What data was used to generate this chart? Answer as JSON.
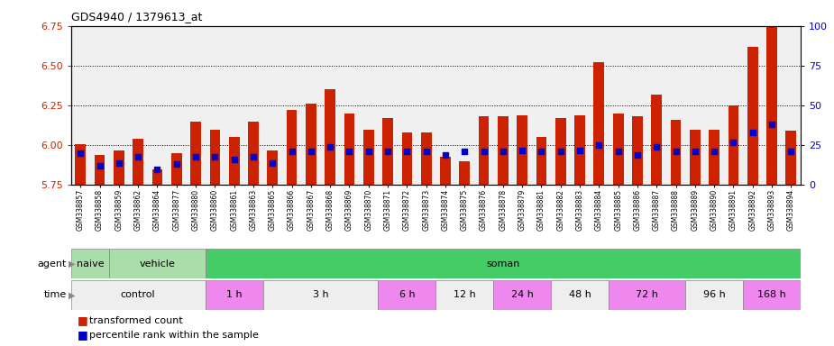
{
  "title": "GDS4940 / 1379613_at",
  "samples": [
    "GSM338857",
    "GSM338858",
    "GSM338859",
    "GSM338862",
    "GSM338864",
    "GSM338877",
    "GSM338880",
    "GSM338860",
    "GSM338861",
    "GSM338863",
    "GSM338865",
    "GSM338866",
    "GSM338867",
    "GSM338868",
    "GSM338869",
    "GSM338870",
    "GSM338871",
    "GSM338872",
    "GSM338873",
    "GSM338874",
    "GSM338875",
    "GSM338876",
    "GSM338878",
    "GSM338879",
    "GSM338881",
    "GSM338882",
    "GSM338883",
    "GSM338884",
    "GSM338885",
    "GSM338886",
    "GSM338887",
    "GSM338888",
    "GSM338889",
    "GSM338890",
    "GSM338891",
    "GSM338892",
    "GSM338893",
    "GSM338894"
  ],
  "transformed_count": [
    6.01,
    5.94,
    5.97,
    6.04,
    5.85,
    5.95,
    6.15,
    6.1,
    6.05,
    6.15,
    5.97,
    6.22,
    6.26,
    6.35,
    6.2,
    6.1,
    6.17,
    6.08,
    6.08,
    5.93,
    5.9,
    6.18,
    6.18,
    6.19,
    6.05,
    6.17,
    6.19,
    6.52,
    6.2,
    6.18,
    6.32,
    6.16,
    6.1,
    6.1,
    6.25,
    6.62,
    6.75,
    6.09
  ],
  "percentile_rank": [
    20,
    12,
    14,
    18,
    10,
    13,
    18,
    18,
    16,
    18,
    14,
    21,
    21,
    24,
    21,
    21,
    21,
    21,
    21,
    19,
    21,
    21,
    21,
    22,
    21,
    21,
    22,
    25,
    21,
    19,
    24,
    21,
    21,
    21,
    27,
    33,
    38,
    21
  ],
  "bar_bottom": 5.75,
  "ylim_left": [
    5.75,
    6.75
  ],
  "yticks_left": [
    5.75,
    6.0,
    6.25,
    6.5,
    6.75
  ],
  "ylim_right": [
    0,
    100
  ],
  "yticks_right": [
    0,
    25,
    50,
    75,
    100
  ],
  "bar_color": "#cc2200",
  "dot_color": "#0000cc",
  "bg_color": "#f0f0f0",
  "agent_defs": [
    {
      "label": "naive",
      "start": 0,
      "end": 1,
      "color": "#aaddaa"
    },
    {
      "label": "vehicle",
      "start": 2,
      "end": 6,
      "color": "#aaddaa"
    },
    {
      "label": "soman",
      "start": 7,
      "end": 37,
      "color": "#44cc66"
    }
  ],
  "time_defs": [
    {
      "label": "control",
      "start": 0,
      "end": 6,
      "color": "#eeeeee"
    },
    {
      "label": "1 h",
      "start": 7,
      "end": 9,
      "color": "#ee88ee"
    },
    {
      "label": "3 h",
      "start": 10,
      "end": 15,
      "color": "#eeeeee"
    },
    {
      "label": "6 h",
      "start": 16,
      "end": 18,
      "color": "#ee88ee"
    },
    {
      "label": "12 h",
      "start": 19,
      "end": 21,
      "color": "#eeeeee"
    },
    {
      "label": "24 h",
      "start": 22,
      "end": 24,
      "color": "#ee88ee"
    },
    {
      "label": "48 h",
      "start": 25,
      "end": 27,
      "color": "#eeeeee"
    },
    {
      "label": "72 h",
      "start": 28,
      "end": 31,
      "color": "#ee88ee"
    },
    {
      "label": "96 h",
      "start": 32,
      "end": 34,
      "color": "#eeeeee"
    },
    {
      "label": "168 h",
      "start": 35,
      "end": 37,
      "color": "#ee88ee"
    }
  ],
  "legend_labels": [
    "transformed count",
    "percentile rank within the sample"
  ],
  "legend_colors": [
    "#cc2200",
    "#0000cc"
  ]
}
